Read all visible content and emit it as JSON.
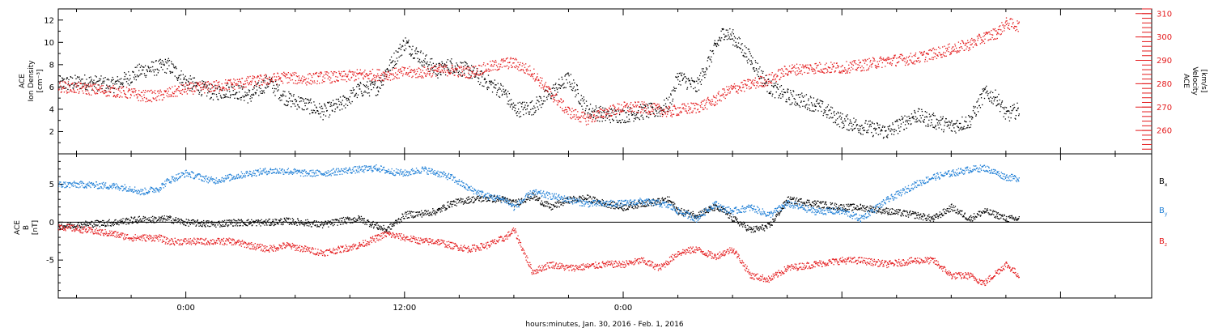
{
  "figure": {
    "xlabel": "hours:minutes, Jan. 30, 2016 - Feb.  1, 2016"
  },
  "chart_data": [
    {
      "type": "scatter",
      "x_tick_labels": [
        "0:00",
        "12:00",
        "0:00"
      ],
      "ylabel_left": [
        "ACE",
        "Ion Density",
        "[cm⁻³]"
      ],
      "ylabel_right": [
        "ACE",
        "Velocity",
        "[km/s]"
      ],
      "x_range_hours": [
        -19,
        41
      ],
      "ylim_left": [
        0,
        13
      ],
      "ylim_right": [
        250,
        312
      ],
      "y_ticks_left": [
        2,
        4,
        6,
        8,
        10,
        12
      ],
      "y_ticks_right": [
        260,
        270,
        280,
        290,
        300,
        310
      ],
      "colors": {
        "density": "#000000",
        "velocity": "#e41a1c"
      },
      "series": [
        {
          "key": "density",
          "color": "#000000",
          "x_hours": [
            -19.0,
            -17.5,
            -16.0,
            -15.0,
            -14.5,
            -13.5,
            -13.0,
            -12.0,
            -10.5,
            -9.5,
            -8.5,
            -7.5,
            -6.5,
            -5.5,
            -4.5,
            -3.5,
            -2.5,
            -1.5,
            -1.0,
            0.0,
            1.0,
            1.8,
            2.5,
            3.5,
            4.5,
            5.5,
            6.0,
            7.0,
            8.0,
            9.0,
            10.0,
            11.0,
            12.0,
            13.0,
            14.0,
            14.5,
            15.0,
            16.0,
            17.0,
            17.5,
            18.0,
            19.0,
            20.0,
            21.0,
            22.5,
            24.0,
            25.0,
            26.5,
            28.0,
            29.0,
            30.0,
            31.0,
            31.8,
            32.5,
            33.0,
            33.7
          ],
          "y": [
            6.3,
            6.5,
            6.2,
            7.0,
            7.5,
            7.8,
            8.0,
            6.5,
            5.5,
            5.8,
            5.2,
            6.5,
            5.0,
            4.5,
            3.8,
            4.5,
            5.8,
            6.0,
            7.5,
            10.0,
            8.5,
            7.5,
            8.0,
            7.5,
            6.5,
            5.5,
            4.0,
            4.2,
            5.5,
            6.8,
            4.0,
            3.5,
            3.5,
            3.8,
            4.0,
            4.5,
            7.0,
            6.0,
            9.5,
            11.0,
            10.5,
            8.5,
            6.0,
            5.2,
            4.5,
            3.0,
            2.5,
            2.0,
            3.5,
            3.0,
            2.5,
            3.0,
            5.5,
            5.0,
            3.5,
            4.0
          ]
        },
        {
          "key": "velocity",
          "color": "#e41a1c",
          "x_hours": [
            -19.0,
            -17.5,
            -16.0,
            -15.0,
            -14.5,
            -13.5,
            -13.0,
            -12.0,
            -10.5,
            -9.5,
            -8.5,
            -7.5,
            -6.5,
            -5.5,
            -4.5,
            -3.5,
            -2.5,
            -1.5,
            -1.0,
            0.0,
            1.0,
            1.8,
            2.5,
            3.5,
            4.5,
            5.5,
            6.0,
            7.0,
            8.0,
            9.0,
            10.0,
            11.0,
            12.0,
            13.0,
            14.0,
            14.5,
            15.0,
            16.0,
            17.0,
            17.5,
            18.0,
            19.0,
            20.0,
            21.0,
            22.5,
            24.0,
            25.0,
            26.5,
            28.0,
            29.0,
            30.0,
            31.0,
            31.8,
            32.5,
            33.0,
            33.7
          ],
          "y": [
            279,
            278,
            277,
            276,
            275,
            275,
            276,
            278,
            279,
            280,
            281,
            282,
            283,
            282,
            283,
            283,
            284,
            284,
            284,
            285,
            285,
            286,
            286,
            285,
            287,
            289,
            289,
            285,
            276,
            268,
            265,
            268,
            270,
            270,
            269,
            268,
            269,
            270,
            273,
            276,
            278,
            280,
            282,
            286,
            287,
            287,
            288,
            290,
            291,
            293,
            295,
            297,
            300,
            302,
            306,
            305
          ]
        }
      ]
    },
    {
      "type": "scatter",
      "x_tick_labels": [
        "0:00",
        "12:00",
        "0:00"
      ],
      "ylabel_left": [
        "ACE",
        "B",
        "[nT]"
      ],
      "x_range_hours": [
        -19,
        41
      ],
      "ylim": [
        -10,
        9
      ],
      "y_ticks": [
        -5,
        0,
        5
      ],
      "zero_line": true,
      "colors": {
        "bx": "#000000",
        "by": "#1f7fd6",
        "bz": "#e41a1c"
      },
      "legend": {
        "placement": "right",
        "entries": [
          "B",
          "B",
          "B"
        ],
        "subscripts": [
          "x",
          "y",
          "z"
        ]
      },
      "series": [
        {
          "key": "bx",
          "color": "#000000",
          "x_hours": [
            -19.0,
            -17.5,
            -16.0,
            -15.0,
            -14.5,
            -13.5,
            -13.0,
            -12.0,
            -10.5,
            -9.5,
            -8.5,
            -7.5,
            -6.5,
            -5.5,
            -4.5,
            -3.5,
            -2.5,
            -1.5,
            -1.0,
            0.0,
            1.0,
            1.8,
            2.5,
            3.5,
            4.5,
            5.5,
            6.0,
            7.0,
            8.0,
            9.0,
            10.0,
            11.0,
            12.0,
            13.0,
            14.0,
            14.5,
            15.0,
            16.0,
            17.0,
            17.5,
            18.0,
            19.0,
            20.0,
            21.0,
            22.5,
            24.0,
            25.0,
            26.5,
            28.0,
            29.0,
            30.0,
            31.0,
            31.8,
            32.5,
            33.0,
            33.7
          ],
          "y": [
            -0.5,
            -0.2,
            0.0,
            0.3,
            0.4,
            0.4,
            0.5,
            0.0,
            -0.2,
            0.0,
            0.0,
            0.0,
            0.2,
            0.0,
            -0.3,
            0.2,
            0.5,
            -0.5,
            -1.0,
            1.0,
            1.2,
            1.5,
            2.5,
            3.0,
            3.2,
            3.0,
            2.5,
            3.5,
            2.0,
            3.0,
            3.2,
            2.5,
            2.0,
            2.5,
            2.8,
            3.0,
            1.5,
            1.0,
            2.0,
            1.5,
            0.5,
            -1.0,
            -0.5,
            3.0,
            2.5,
            2.0,
            2.0,
            1.5,
            1.0,
            0.5,
            2.0,
            0.5,
            1.5,
            1.0,
            0.5,
            0.5
          ]
        },
        {
          "key": "by",
          "color": "#1f7fd6",
          "x_hours": [
            -19.0,
            -17.5,
            -16.0,
            -15.0,
            -14.5,
            -13.5,
            -13.0,
            -12.0,
            -10.5,
            -9.5,
            -8.5,
            -7.5,
            -6.5,
            -5.5,
            -4.5,
            -3.5,
            -2.5,
            -1.5,
            -1.0,
            0.0,
            1.0,
            1.8,
            2.5,
            3.5,
            4.5,
            5.5,
            6.0,
            7.0,
            8.0,
            9.0,
            10.0,
            11.0,
            12.0,
            13.0,
            14.0,
            14.5,
            15.0,
            16.0,
            17.0,
            17.5,
            18.0,
            19.0,
            20.0,
            21.0,
            22.5,
            24.0,
            25.0,
            26.5,
            28.0,
            29.0,
            30.0,
            31.0,
            31.8,
            32.5,
            33.0,
            33.7
          ],
          "y": [
            5.0,
            5.0,
            4.8,
            4.5,
            4.0,
            4.5,
            5.5,
            6.5,
            5.5,
            6.0,
            6.5,
            6.8,
            6.8,
            6.5,
            6.5,
            6.8,
            7.0,
            7.2,
            6.8,
            6.5,
            7.0,
            6.5,
            6.0,
            4.5,
            3.5,
            3.0,
            2.0,
            4.0,
            3.5,
            3.0,
            2.5,
            2.5,
            2.5,
            2.8,
            2.5,
            2.2,
            1.5,
            0.5,
            2.5,
            1.8,
            1.5,
            2.0,
            1.0,
            2.5,
            1.5,
            1.5,
            0.5,
            3.0,
            5.0,
            6.0,
            6.5,
            7.0,
            7.2,
            6.5,
            6.0,
            5.8
          ]
        },
        {
          "key": "bz",
          "color": "#e41a1c",
          "x_hours": [
            -19.0,
            -17.5,
            -16.0,
            -15.0,
            -14.5,
            -13.5,
            -13.0,
            -12.0,
            -10.5,
            -9.5,
            -8.5,
            -7.5,
            -6.5,
            -5.5,
            -4.5,
            -3.5,
            -2.5,
            -1.5,
            -1.0,
            0.0,
            1.0,
            1.8,
            2.5,
            3.5,
            4.5,
            5.5,
            6.0,
            7.0,
            8.0,
            9.0,
            10.0,
            11.0,
            12.0,
            13.0,
            14.0,
            14.5,
            15.0,
            16.0,
            17.0,
            17.5,
            18.0,
            19.0,
            20.0,
            21.0,
            22.5,
            24.0,
            25.0,
            26.5,
            28.0,
            29.0,
            30.0,
            31.0,
            31.8,
            32.5,
            33.0,
            33.7
          ],
          "y": [
            -0.5,
            -1.0,
            -1.5,
            -2.0,
            -2.0,
            -2.0,
            -2.5,
            -2.5,
            -2.5,
            -2.5,
            -3.0,
            -3.5,
            -3.0,
            -3.5,
            -4.0,
            -3.5,
            -3.0,
            -2.0,
            -1.5,
            -2.0,
            -2.5,
            -2.5,
            -3.0,
            -3.5,
            -3.0,
            -2.0,
            -1.0,
            -6.5,
            -5.5,
            -6.0,
            -5.8,
            -5.5,
            -5.5,
            -5.0,
            -6.0,
            -5.0,
            -4.0,
            -3.5,
            -4.5,
            -4.0,
            -3.5,
            -7.0,
            -7.5,
            -6.0,
            -5.5,
            -5.0,
            -5.0,
            -5.5,
            -5.0,
            -5.0,
            -7.0,
            -7.0,
            -8.0,
            -6.5,
            -5.5,
            -7.0
          ]
        }
      ]
    }
  ]
}
